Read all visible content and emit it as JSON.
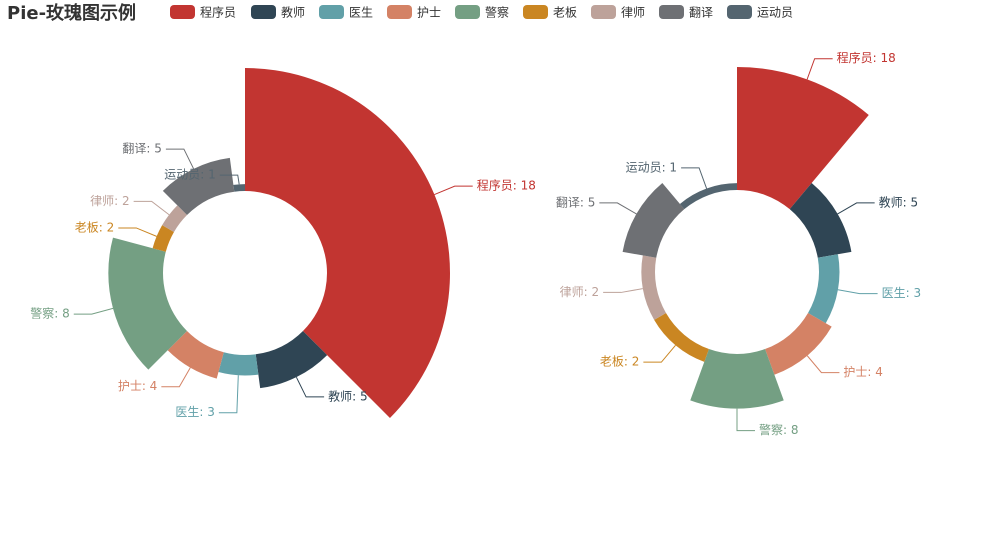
{
  "chart_data": [
    {
      "type": "pie",
      "rose_type": "radius",
      "title": "Pie-玫瑰图示例",
      "categories": [
        "程序员",
        "教师",
        "医生",
        "护士",
        "警察",
        "老板",
        "律师",
        "翻译",
        "运动员"
      ],
      "values": [
        18,
        5,
        3,
        4,
        8,
        2,
        2,
        5,
        1
      ],
      "value_labels": [
        "程序员: 18",
        "教师: 5",
        "医生: 3",
        "护士: 4",
        "警察: 8",
        "老板: 2",
        "律师: 2",
        "翻译: 5",
        "运动员: 1"
      ],
      "colors": [
        "#c23531",
        "#2f4554",
        "#61a0a8",
        "#d48265",
        "#749f83",
        "#ca8622",
        "#bda29a",
        "#6e7074",
        "#546570"
      ]
    },
    {
      "type": "pie",
      "rose_type": "area",
      "categories": [
        "程序员",
        "教师",
        "医生",
        "护士",
        "警察",
        "老板",
        "律师",
        "翻译",
        "运动员"
      ],
      "values": [
        18,
        5,
        3,
        4,
        8,
        2,
        2,
        5,
        1
      ],
      "value_labels": [
        "程序员: 18",
        "教师: 5",
        "医生: 3",
        "护士: 4",
        "警察: 8",
        "老板: 2",
        "律师: 2",
        "翻译: 5",
        "运动员: 1"
      ],
      "colors": [
        "#c23531",
        "#2f4554",
        "#61a0a8",
        "#d48265",
        "#749f83",
        "#ca8622",
        "#bda29a",
        "#6e7074",
        "#546570"
      ]
    }
  ]
}
